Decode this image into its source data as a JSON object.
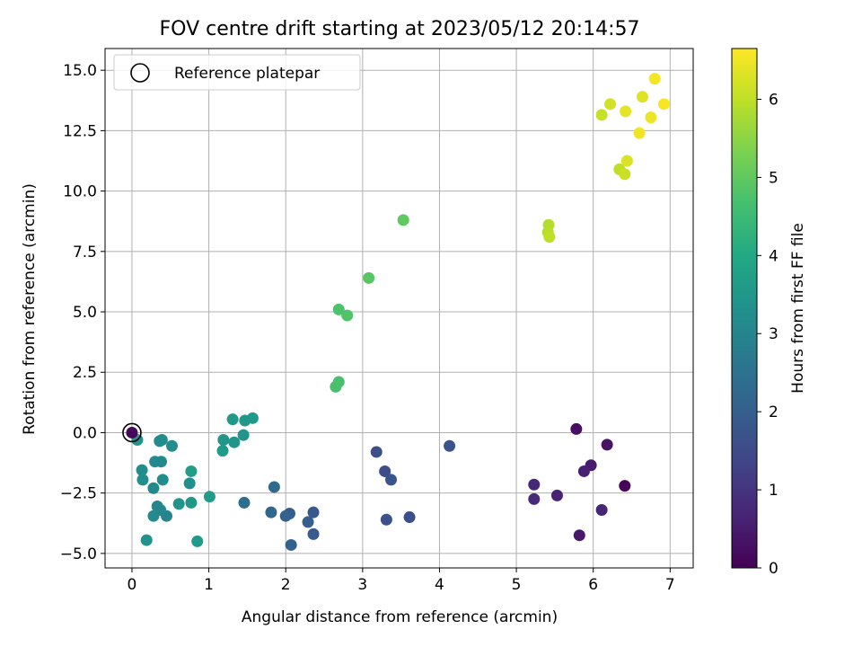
{
  "chart_data": {
    "type": "scatter",
    "title": "FOV centre drift starting at 2023/05/12 20:14:57",
    "xlabel": "Angular distance from reference (arcmin)",
    "ylabel": "Rotation from reference (arcmin)",
    "xlim": [
      -0.35,
      7.3
    ],
    "ylim": [
      -5.6,
      15.9
    ],
    "xticks": [
      0,
      1,
      2,
      3,
      4,
      5,
      6,
      7
    ],
    "yticks": [
      -5.0,
      -2.5,
      0.0,
      2.5,
      5.0,
      7.5,
      10.0,
      12.5,
      15.0
    ],
    "xtick_labels": [
      "0",
      "1",
      "2",
      "3",
      "4",
      "5",
      "6",
      "7"
    ],
    "ytick_labels": [
      "−5.0",
      "−2.5",
      "0.0",
      "2.5",
      "5.0",
      "7.5",
      "10.0",
      "12.5",
      "15.0"
    ],
    "grid": true,
    "legend": {
      "position": "top-left",
      "entries": [
        "Reference platepar"
      ]
    },
    "reference_point": {
      "x": 0.0,
      "y": 0.0
    },
    "colorbar": {
      "label": "Hours from first FF file",
      "colormap": "viridis",
      "range": [
        0,
        6.65
      ],
      "ticks": [
        0,
        1,
        2,
        3,
        4,
        5,
        6
      ],
      "tick_labels": [
        "0",
        "1",
        "2",
        "3",
        "4",
        "5",
        "6"
      ]
    },
    "points": [
      {
        "x": 5.78,
        "y": 0.15,
        "c": 0.25
      },
      {
        "x": 6.18,
        "y": -0.5,
        "c": 0.35
      },
      {
        "x": 6.41,
        "y": -2.2,
        "c": 0.1
      },
      {
        "x": 5.97,
        "y": -1.35,
        "c": 0.5
      },
      {
        "x": 5.88,
        "y": -1.6,
        "c": 0.6
      },
      {
        "x": 6.11,
        "y": -3.2,
        "c": 0.7
      },
      {
        "x": 5.82,
        "y": -4.25,
        "c": 0.45
      },
      {
        "x": 5.23,
        "y": -2.15,
        "c": 0.75
      },
      {
        "x": 5.23,
        "y": -2.75,
        "c": 0.8
      },
      {
        "x": 5.53,
        "y": -2.6,
        "c": 0.65
      },
      {
        "x": 4.13,
        "y": -0.55,
        "c": 1.7
      },
      {
        "x": 3.18,
        "y": -0.8,
        "c": 1.6
      },
      {
        "x": 3.29,
        "y": -1.6,
        "c": 1.55
      },
      {
        "x": 3.37,
        "y": -1.95,
        "c": 1.75
      },
      {
        "x": 3.31,
        "y": -3.6,
        "c": 1.65
      },
      {
        "x": 3.61,
        "y": -3.5,
        "c": 1.6
      },
      {
        "x": 2.36,
        "y": -3.3,
        "c": 1.85
      },
      {
        "x": 2.36,
        "y": -4.2,
        "c": 1.9
      },
      {
        "x": 2.29,
        "y": -3.7,
        "c": 2.0
      },
      {
        "x": 2.07,
        "y": -4.65,
        "c": 2.1
      },
      {
        "x": 2.05,
        "y": -3.35,
        "c": 1.95
      },
      {
        "x": 2.0,
        "y": -3.45,
        "c": 2.05
      },
      {
        "x": 1.85,
        "y": -2.25,
        "c": 2.3
      },
      {
        "x": 1.81,
        "y": -3.3,
        "c": 2.2
      },
      {
        "x": 1.46,
        "y": -2.9,
        "c": 2.4
      },
      {
        "x": 1.57,
        "y": 0.6,
        "c": 3.6
      },
      {
        "x": 1.47,
        "y": 0.5,
        "c": 3.5
      },
      {
        "x": 1.31,
        "y": 0.55,
        "c": 3.55
      },
      {
        "x": 1.45,
        "y": -0.1,
        "c": 3.4
      },
      {
        "x": 1.33,
        "y": -0.4,
        "c": 3.45
      },
      {
        "x": 1.19,
        "y": -0.3,
        "c": 3.5
      },
      {
        "x": 1.18,
        "y": -0.75,
        "c": 3.6
      },
      {
        "x": 1.01,
        "y": -2.65,
        "c": 3.65
      },
      {
        "x": 0.85,
        "y": -4.5,
        "c": 3.6
      },
      {
        "x": 0.77,
        "y": -1.6,
        "c": 3.7
      },
      {
        "x": 0.75,
        "y": -2.1,
        "c": 3.3
      },
      {
        "x": 0.77,
        "y": -2.9,
        "c": 3.5
      },
      {
        "x": 0.61,
        "y": -2.95,
        "c": 3.4
      },
      {
        "x": 0.52,
        "y": -0.55,
        "c": 3.2
      },
      {
        "x": 0.45,
        "y": -3.45,
        "c": 3.0
      },
      {
        "x": 0.4,
        "y": -1.95,
        "c": 3.25
      },
      {
        "x": 0.38,
        "y": -1.2,
        "c": 3.1
      },
      {
        "x": 0.39,
        "y": -0.3,
        "c": 3.2
      },
      {
        "x": 0.36,
        "y": -0.35,
        "c": 3.15
      },
      {
        "x": 0.33,
        "y": -3.05,
        "c": 3.0
      },
      {
        "x": 0.37,
        "y": -3.2,
        "c": 3.05
      },
      {
        "x": 0.3,
        "y": -1.2,
        "c": 3.1
      },
      {
        "x": 0.28,
        "y": -2.3,
        "c": 3.1
      },
      {
        "x": 0.28,
        "y": -3.45,
        "c": 3.15
      },
      {
        "x": 0.13,
        "y": -1.55,
        "c": 3.25
      },
      {
        "x": 0.14,
        "y": -1.95,
        "c": 3.3
      },
      {
        "x": 0.19,
        "y": -4.45,
        "c": 3.35
      },
      {
        "x": 0.07,
        "y": -0.3,
        "c": 3.4
      },
      {
        "x": 2.69,
        "y": 5.1,
        "c": 4.75
      },
      {
        "x": 2.8,
        "y": 4.85,
        "c": 4.8
      },
      {
        "x": 2.69,
        "y": 2.1,
        "c": 4.7
      },
      {
        "x": 2.65,
        "y": 1.9,
        "c": 4.7
      },
      {
        "x": 3.08,
        "y": 6.4,
        "c": 4.9
      },
      {
        "x": 3.53,
        "y": 8.8,
        "c": 5.0
      },
      {
        "x": 5.42,
        "y": 8.6,
        "c": 5.9
      },
      {
        "x": 5.41,
        "y": 8.3,
        "c": 5.95
      },
      {
        "x": 5.43,
        "y": 8.1,
        "c": 6.0
      },
      {
        "x": 6.11,
        "y": 13.15,
        "c": 6.1
      },
      {
        "x": 6.22,
        "y": 13.6,
        "c": 6.2
      },
      {
        "x": 6.34,
        "y": 10.9,
        "c": 6.0
      },
      {
        "x": 6.41,
        "y": 10.7,
        "c": 6.1
      },
      {
        "x": 6.44,
        "y": 11.25,
        "c": 6.3
      },
      {
        "x": 6.42,
        "y": 13.3,
        "c": 6.4
      },
      {
        "x": 6.6,
        "y": 12.4,
        "c": 6.5
      },
      {
        "x": 6.64,
        "y": 13.9,
        "c": 6.35
      },
      {
        "x": 6.75,
        "y": 13.05,
        "c": 6.45
      },
      {
        "x": 6.8,
        "y": 14.65,
        "c": 6.55
      },
      {
        "x": 6.92,
        "y": 13.6,
        "c": 6.6
      }
    ]
  }
}
